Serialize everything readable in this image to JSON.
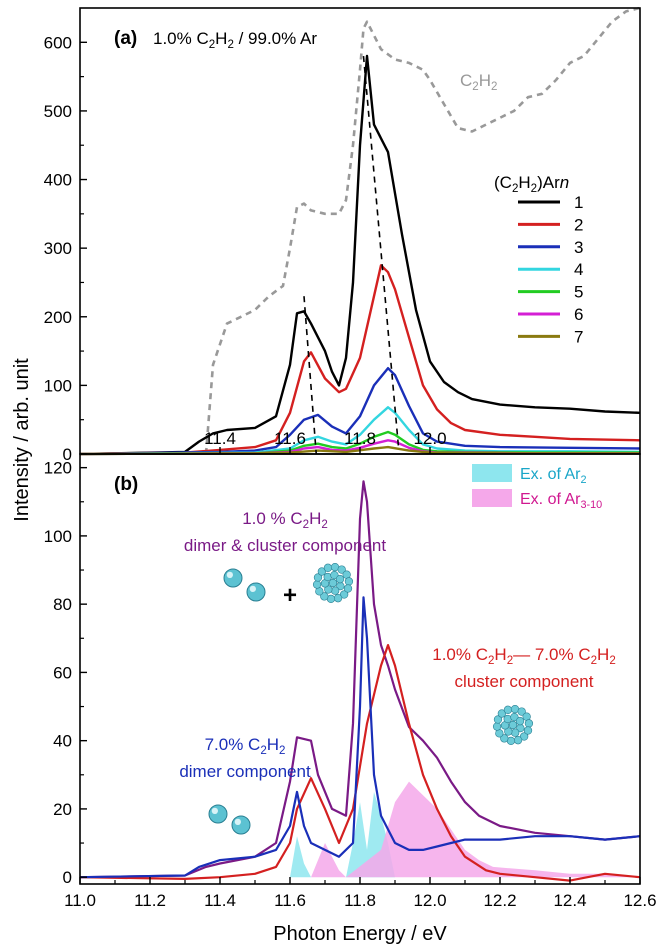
{
  "figure": {
    "ylabel": "Intensity / arb. unit",
    "xlabel": "Photon Energy / eV"
  },
  "colors": {
    "n1": "#000000",
    "n2": "#d42020",
    "n3": "#1a2fb8",
    "n4": "#33d6e0",
    "n5": "#22cc22",
    "n6": "#d41fd4",
    "n7": "#8a7a10",
    "c2h2": "#999999",
    "purple": "#7a1a86",
    "ar2_fill": "#8ee6ee",
    "ar310_fill": "#f5a8ea"
  },
  "chart_data": [
    {
      "type": "line",
      "panel_label": "(a)",
      "title_parts": [
        "1.0% C",
        "2",
        "H",
        "2",
        " / 99.0% Ar"
      ],
      "xlim": [
        11.0,
        12.6
      ],
      "ylim": [
        0,
        650
      ],
      "x_ticks": [
        "11.4",
        "11.6",
        "11.8",
        "12.0"
      ],
      "y_ticks": [
        "0",
        "100",
        "200",
        "300",
        "400",
        "500",
        "600"
      ],
      "legend_title_parts": [
        "(C",
        "2",
        "H",
        "2",
        ")Ar",
        "n"
      ],
      "legend_entries": [
        "1",
        "2",
        "3",
        "4",
        "5",
        "6",
        "7"
      ],
      "reference_label_parts": [
        "C",
        "2",
        "H",
        "2"
      ],
      "series": [
        {
          "name": "C2H2",
          "style": "dashed",
          "color": "#999999",
          "x": [
            11.36,
            11.38,
            11.42,
            11.46,
            11.5,
            11.54,
            11.58,
            11.6,
            11.62,
            11.64,
            11.66,
            11.7,
            11.74,
            11.76,
            11.78,
            11.8,
            11.81,
            11.82,
            11.84,
            11.86,
            11.9,
            11.94,
            11.98,
            12.0,
            12.04,
            12.08,
            12.12,
            12.16,
            12.2,
            12.24,
            12.28,
            12.32,
            12.36,
            12.4,
            12.44,
            12.48,
            12.52,
            12.56,
            12.6
          ],
          "y": [
            0,
            130,
            190,
            200,
            210,
            230,
            245,
            300,
            360,
            365,
            355,
            350,
            350,
            370,
            450,
            560,
            620,
            630,
            610,
            590,
            575,
            570,
            560,
            545,
            510,
            475,
            470,
            480,
            490,
            500,
            520,
            525,
            545,
            570,
            580,
            605,
            630,
            645,
            650
          ]
        },
        {
          "name": "1",
          "color": "#000000",
          "x": [
            11.0,
            11.3,
            11.34,
            11.38,
            11.42,
            11.5,
            11.56,
            11.6,
            11.62,
            11.64,
            11.66,
            11.7,
            11.72,
            11.74,
            11.76,
            11.78,
            11.8,
            11.82,
            11.84,
            11.88,
            11.9,
            11.92,
            11.96,
            12.0,
            12.04,
            12.08,
            12.12,
            12.2,
            12.3,
            12.4,
            12.5,
            12.6
          ],
          "y": [
            0,
            3,
            18,
            30,
            35,
            38,
            55,
            130,
            205,
            208,
            190,
            150,
            120,
            100,
            140,
            250,
            450,
            580,
            480,
            440,
            380,
            320,
            210,
            135,
            105,
            90,
            80,
            72,
            68,
            66,
            62,
            60
          ]
        },
        {
          "name": "2",
          "color": "#d42020",
          "x": [
            11.0,
            11.3,
            11.4,
            11.5,
            11.56,
            11.6,
            11.64,
            11.66,
            11.7,
            11.74,
            11.76,
            11.8,
            11.84,
            11.86,
            11.88,
            11.9,
            11.94,
            11.98,
            12.02,
            12.06,
            12.1,
            12.2,
            12.3,
            12.4,
            12.6
          ],
          "y": [
            0,
            2,
            6,
            10,
            20,
            60,
            135,
            148,
            110,
            90,
            95,
            140,
            230,
            275,
            265,
            240,
            170,
            100,
            65,
            45,
            35,
            28,
            25,
            22,
            20
          ]
        },
        {
          "name": "3",
          "color": "#1a2fb8",
          "x": [
            11.0,
            11.4,
            11.5,
            11.56,
            11.6,
            11.64,
            11.68,
            11.72,
            11.76,
            11.8,
            11.84,
            11.88,
            11.9,
            11.94,
            11.98,
            12.02,
            12.1,
            12.2,
            12.4,
            12.6
          ],
          "y": [
            0,
            3,
            5,
            10,
            28,
            50,
            57,
            40,
            30,
            55,
            100,
            125,
            115,
            70,
            30,
            18,
            12,
            10,
            9,
            8
          ]
        },
        {
          "name": "4",
          "color": "#33d6e0",
          "x": [
            11.0,
            11.5,
            11.6,
            11.64,
            11.68,
            11.72,
            11.76,
            11.8,
            11.84,
            11.88,
            11.9,
            11.94,
            11.98,
            12.02,
            12.1,
            12.2,
            12.4,
            12.6
          ],
          "y": [
            0,
            2,
            8,
            20,
            25,
            18,
            14,
            28,
            50,
            68,
            60,
            35,
            14,
            8,
            5,
            4,
            4,
            3
          ]
        },
        {
          "name": "5",
          "color": "#22cc22",
          "x": [
            11.0,
            11.5,
            11.6,
            11.64,
            11.68,
            11.72,
            11.76,
            11.8,
            11.84,
            11.88,
            11.9,
            11.94,
            11.98,
            12.02,
            12.1,
            12.3,
            12.6
          ],
          "y": [
            0,
            1,
            5,
            12,
            15,
            10,
            8,
            15,
            25,
            32,
            28,
            14,
            6,
            4,
            3,
            2,
            2
          ]
        },
        {
          "name": "6",
          "color": "#d41fd4",
          "x": [
            11.0,
            11.5,
            11.6,
            11.64,
            11.68,
            11.72,
            11.76,
            11.8,
            11.84,
            11.88,
            11.9,
            11.94,
            11.98,
            12.02,
            12.1,
            12.3,
            12.6
          ],
          "y": [
            0,
            1,
            3,
            8,
            10,
            6,
            5,
            9,
            15,
            20,
            18,
            9,
            4,
            2,
            2,
            1,
            1
          ]
        },
        {
          "name": "7",
          "color": "#8a7a10",
          "x": [
            11.0,
            11.5,
            11.6,
            11.68,
            11.76,
            11.84,
            11.88,
            11.94,
            12.0,
            12.2,
            12.6
          ],
          "y": [
            0,
            1,
            2,
            5,
            3,
            8,
            10,
            5,
            2,
            1,
            1
          ]
        }
      ],
      "guide_lines": [
        {
          "x1": 11.64,
          "y1": 230,
          "x2": 11.675,
          "y2": 0
        },
        {
          "x1": 11.81,
          "y1": 580,
          "x2": 11.91,
          "y2": 10
        }
      ]
    },
    {
      "type": "line",
      "panel_label": "(b)",
      "xlim": [
        11.0,
        12.6
      ],
      "ylim": [
        -2,
        124
      ],
      "x_ticks": [
        "11.0",
        "11.2",
        "11.4",
        "11.6",
        "11.8",
        "12.0",
        "12.2",
        "12.4",
        "12.6"
      ],
      "y_ticks": [
        "0",
        "20",
        "40",
        "60",
        "80",
        "100",
        "120"
      ],
      "legend_entries": [
        {
          "label_parts": [
            "Ex. of Ar",
            "2"
          ],
          "label_color": "#1aa6c8",
          "fill": "#8ee6ee"
        },
        {
          "label_parts": [
            "Ex. of Ar",
            "3-10"
          ],
          "label_color": "#d01890",
          "fill": "#f5a8ea"
        }
      ],
      "annotations": {
        "purple_line1_parts": [
          "1.0 % C",
          "2",
          "H",
          "2"
        ],
        "purple_line2": "dimer & cluster component",
        "red_line1_parts": [
          "1.0% C",
          "2",
          "H",
          "2",
          "— 7.0% C",
          "2",
          "H",
          "2"
        ],
        "red_line2": "cluster component",
        "blue_line1_parts": [
          "7.0% C",
          "2",
          "H",
          "2"
        ],
        "blue_line2": "dimer component",
        "plus_sign": "+"
      },
      "series": [
        {
          "name": "1.0 % C2H2 dimer & cluster component",
          "color": "#7a1a86",
          "x": [
            11.0,
            11.3,
            11.36,
            11.4,
            11.5,
            11.56,
            11.6,
            11.62,
            11.66,
            11.68,
            11.72,
            11.76,
            11.78,
            11.8,
            11.81,
            11.82,
            11.84,
            11.86,
            11.88,
            11.9,
            11.94,
            11.98,
            12.02,
            12.06,
            12.1,
            12.14,
            12.2,
            12.3,
            12.4,
            12.5,
            12.6
          ],
          "y": [
            0,
            0.5,
            3,
            4,
            6,
            10,
            28,
            41,
            40,
            30,
            20,
            18,
            45,
            105,
            116,
            110,
            80,
            68,
            62,
            55,
            44,
            40,
            35,
            28,
            22,
            18,
            15,
            13,
            12,
            11,
            12
          ]
        },
        {
          "name": "1.0% C2H2 - 7.0% C2H2 cluster component",
          "color": "#d42020",
          "x": [
            11.0,
            11.3,
            11.4,
            11.5,
            11.56,
            11.6,
            11.62,
            11.66,
            11.7,
            11.74,
            11.78,
            11.82,
            11.86,
            11.88,
            11.9,
            11.94,
            11.98,
            12.02,
            12.06,
            12.1,
            12.16,
            12.2,
            12.3,
            12.4,
            12.5,
            12.6
          ],
          "y": [
            0,
            -0.5,
            0,
            1,
            3,
            10,
            20,
            29,
            20,
            10,
            20,
            45,
            62,
            68,
            62,
            45,
            30,
            20,
            12,
            6,
            2,
            1,
            0,
            -1,
            1,
            0
          ]
        },
        {
          "name": "7.0% C2H2 dimer component",
          "color": "#1a2fb8",
          "x": [
            11.0,
            11.3,
            11.34,
            11.4,
            11.5,
            11.56,
            11.6,
            11.62,
            11.64,
            11.66,
            11.7,
            11.74,
            11.78,
            11.8,
            11.81,
            11.82,
            11.84,
            11.86,
            11.9,
            11.94,
            11.98,
            12.02,
            12.06,
            12.1,
            12.2,
            12.3,
            12.4,
            12.5,
            12.6
          ],
          "y": [
            0,
            0.5,
            3,
            5,
            6,
            8,
            15,
            25,
            15,
            10,
            8,
            6,
            10,
            50,
            82,
            70,
            30,
            18,
            10,
            8,
            8,
            9,
            10,
            11,
            11,
            12,
            12,
            11,
            12
          ]
        }
      ],
      "fills": [
        {
          "name": "Ex. of Ar2",
          "fill": "#8ee6ee",
          "x": [
            11.6,
            11.62,
            11.64,
            11.66,
            11.76,
            11.78,
            11.8,
            11.82,
            11.84,
            11.86,
            11.88,
            11.9
          ],
          "y": [
            0,
            12,
            4,
            0,
            0,
            10,
            22,
            8,
            25,
            18,
            10,
            0
          ]
        },
        {
          "name": "Ex. of Ar3-10",
          "fill": "#f5a8ea",
          "x": [
            11.66,
            11.7,
            11.72,
            11.74,
            11.76,
            11.86,
            11.9,
            11.94,
            11.98,
            12.02,
            12.06,
            12.1,
            12.14,
            12.18,
            12.3,
            12.4,
            12.5,
            12.6
          ],
          "y": [
            0,
            10,
            6,
            2,
            0,
            8,
            22,
            28,
            24,
            20,
            14,
            8,
            5,
            3,
            2,
            1,
            1,
            0
          ]
        }
      ]
    }
  ]
}
